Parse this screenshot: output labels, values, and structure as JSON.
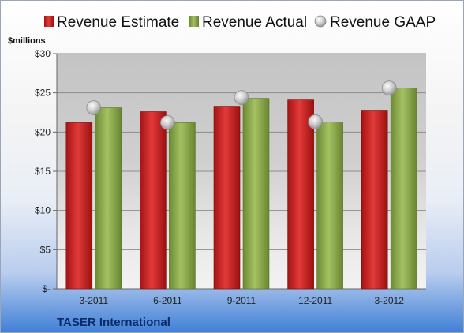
{
  "chart_data": {
    "type": "bar",
    "categories": [
      "3-2011",
      "6-2011",
      "9-2011",
      "12-2011",
      "3-2012"
    ],
    "series": [
      {
        "name": "Revenue Estimate",
        "kind": "bar",
        "color": "#d42a2a",
        "values": [
          21.2,
          22.6,
          23.3,
          24.1,
          22.7
        ]
      },
      {
        "name": "Revenue Actual",
        "kind": "bar",
        "color": "#8fae4e",
        "values": [
          23.1,
          21.2,
          24.3,
          21.3,
          25.6
        ]
      },
      {
        "name": "Revenue GAAP",
        "kind": "marker",
        "color": "#c8c8c8",
        "values": [
          23.1,
          21.2,
          24.4,
          21.3,
          25.6
        ]
      }
    ],
    "ylabel": "$millions",
    "ylim": [
      0,
      30
    ],
    "yticks": [
      0,
      5,
      10,
      15,
      20,
      25,
      30
    ],
    "ytick_labels": [
      "$-",
      "$5",
      "$10",
      "$15",
      "$20",
      "$25",
      "$30"
    ],
    "grid": true,
    "legend": "top"
  },
  "footer": {
    "company": "TASER International"
  }
}
